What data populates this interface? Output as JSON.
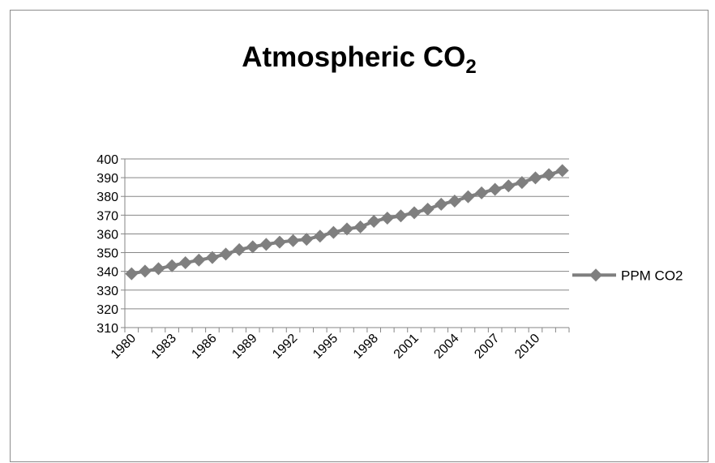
{
  "chart_data": {
    "type": "line",
    "title_main": "Atmospheric CO",
    "title_sub": "2",
    "xlabel": "",
    "ylabel": "",
    "ylim": [
      310,
      400
    ],
    "yticks": [
      310,
      320,
      330,
      340,
      350,
      360,
      370,
      380,
      390,
      400
    ],
    "xlim": [
      1980,
      2012
    ],
    "xtick_labels": [
      "1980",
      "1983",
      "1986",
      "1989",
      "1992",
      "1995",
      "1998",
      "2001",
      "2004",
      "2007",
      "2010"
    ],
    "grid": "horizontal",
    "legend_position": "right",
    "series": [
      {
        "name": "PPM CO2",
        "color": "#7f7f7f",
        "marker": "diamond",
        "x": [
          1980,
          1981,
          1982,
          1983,
          1984,
          1985,
          1986,
          1987,
          1988,
          1989,
          1990,
          1991,
          1992,
          1993,
          1994,
          1995,
          1996,
          1997,
          1998,
          1999,
          2000,
          2001,
          2002,
          2003,
          2004,
          2005,
          2006,
          2007,
          2008,
          2009,
          2010,
          2011,
          2012
        ],
        "values": [
          338.7,
          340.1,
          341.4,
          343.0,
          344.6,
          346.0,
          347.4,
          349.2,
          351.6,
          353.1,
          354.4,
          355.6,
          356.4,
          357.1,
          358.8,
          360.8,
          362.6,
          363.7,
          366.7,
          368.4,
          369.6,
          371.3,
          373.2,
          375.8,
          377.5,
          379.8,
          381.9,
          383.8,
          385.6,
          387.4,
          389.9,
          391.6,
          393.8
        ]
      }
    ]
  }
}
